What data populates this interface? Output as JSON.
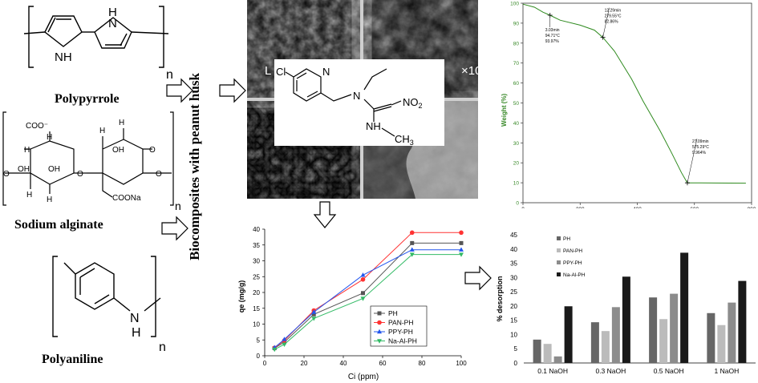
{
  "molecules": {
    "polypyrrole": {
      "name": "Polypyrrole",
      "nh1": "NH",
      "nh2": "H\nN",
      "n": "n"
    },
    "alginate": {
      "name": "Sodium alginate",
      "coo": "COO",
      "coona": "COONa",
      "h": "H",
      "oh": "OH",
      "o": "O",
      "n": "n"
    },
    "polyaniline": {
      "name": "Polyaniline",
      "n_atom": "N",
      "h_atom": "H",
      "n": "n"
    }
  },
  "vertical_label": "Biocomposites with peanut husk",
  "sem": {
    "mag_text": "×10"
  },
  "structure": {
    "cl": "Cl",
    "n_ring": "N",
    "n_amine": "N",
    "no2": "NO",
    "no2_sub": "2",
    "nh": "NH",
    "ch3": "CH",
    "ch3_sub": "3"
  },
  "tga": {
    "ylabel": "Weight (%)",
    "yticks": [
      "100",
      "90",
      "80",
      "70",
      "60",
      "50",
      "40",
      "30",
      "20",
      "10",
      "0"
    ],
    "xticks": [
      "0",
      "200",
      "400",
      "600",
      "800"
    ],
    "annotations": [
      {
        "lines": [
          "3.03min",
          "94.71°C",
          "93.97%"
        ]
      },
      {
        "lines": [
          "12.29min",
          "279.55°C",
          "82.86%"
        ]
      },
      {
        "lines": [
          "27.09min",
          "575.29°C",
          "9.964%"
        ]
      }
    ],
    "curve": [
      [
        0,
        99.5
      ],
      [
        40,
        98
      ],
      [
        70,
        95.5
      ],
      [
        94.71,
        93.97
      ],
      [
        130,
        91.5
      ],
      [
        200,
        89
      ],
      [
        250,
        86.5
      ],
      [
        279.55,
        82.86
      ],
      [
        320,
        76
      ],
      [
        380,
        62
      ],
      [
        420,
        51
      ],
      [
        480,
        36
      ],
      [
        520,
        25
      ],
      [
        555,
        15
      ],
      [
        575.29,
        9.964
      ],
      [
        620,
        9.9
      ],
      [
        780,
        9.8
      ]
    ]
  },
  "chart_data": [
    {
      "type": "line",
      "xlabel": "Ci (ppm)",
      "ylabel": "qe (mg/g)",
      "xlim": [
        0,
        100
      ],
      "ylim": [
        0,
        40
      ],
      "xticks": [
        "0",
        "20",
        "40",
        "60",
        "80",
        "100"
      ],
      "yticks": [
        "0",
        "5",
        "10",
        "15",
        "20",
        "25",
        "30",
        "35",
        "40"
      ],
      "legend_position": "bottom-right",
      "series": [
        {
          "name": "PH",
          "color": "#555555",
          "marker": "square",
          "x": [
            5,
            10,
            25,
            50,
            75,
            100
          ],
          "values": [
            2.4,
            4.3,
            13.1,
            19.8,
            35.6,
            35.6
          ]
        },
        {
          "name": "PAN-PH",
          "color": "#ff3333",
          "marker": "circle",
          "x": [
            5,
            10,
            25,
            50,
            75,
            100
          ],
          "values": [
            2.5,
            4.8,
            14.3,
            24.1,
            38.9,
            38.9
          ]
        },
        {
          "name": "PPY-PH",
          "color": "#2255ee",
          "marker": "triangle",
          "x": [
            5,
            10,
            25,
            50,
            75,
            100
          ],
          "values": [
            2.6,
            5.2,
            13.8,
            25.5,
            33.5,
            33.5
          ]
        },
        {
          "name": "Na-Al-PH",
          "color": "#33bb66",
          "marker": "triangle-down",
          "x": [
            5,
            10,
            25,
            50,
            75,
            100
          ],
          "values": [
            2.0,
            3.6,
            11.8,
            18.1,
            32.0,
            32.0
          ]
        }
      ]
    },
    {
      "type": "bar",
      "ylabel": "% desorption",
      "ylim": [
        0,
        45
      ],
      "yticks": [
        "0",
        "5",
        "10",
        "15",
        "20",
        "25",
        "30",
        "35",
        "40",
        "45"
      ],
      "categories": [
        "0.1 NaOH",
        "0.3 NaOH",
        "0.5 NaOH",
        "1 NaOH"
      ],
      "legend_position": "top-left",
      "series": [
        {
          "name": "PH",
          "color": "#666666",
          "values": [
            8.2,
            14.3,
            23.0,
            17.5
          ]
        },
        {
          "name": "PAN-PH",
          "color": "#bbbbbb",
          "values": [
            6.7,
            11.2,
            15.4,
            13.3
          ]
        },
        {
          "name": "PPY-PH",
          "color": "#8c8c8c",
          "values": [
            2.3,
            19.6,
            24.3,
            21.2
          ]
        },
        {
          "name": "Na-Al-PH",
          "color": "#1a1a1a",
          "values": [
            19.9,
            30.3,
            38.7,
            28.8
          ]
        }
      ]
    }
  ]
}
